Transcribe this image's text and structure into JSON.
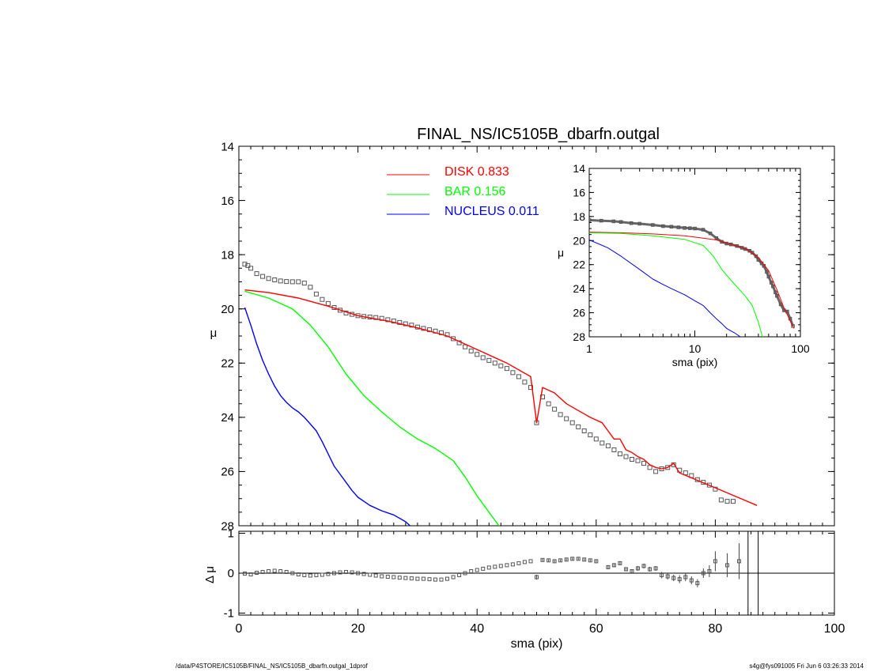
{
  "footer": {
    "left": "/data/P4STORE/IC5105B/FINAL_NS/IC5105B_dbarfn.outgal_1dprof",
    "right": "s4g@fys091005  Fri Jun  6 03:26:33 2014"
  },
  "chart_data": [
    {
      "type": "line",
      "panel": "main",
      "title": "FINAL_NS/IC5105B_dbarfn.outgal",
      "xlabel": "",
      "ylabel": "μ",
      "xlim": [
        0,
        100
      ],
      "ylim": [
        28,
        14
      ],
      "y_inverted": true,
      "yticks": [
        14,
        16,
        18,
        20,
        22,
        24,
        26,
        28
      ],
      "legend": {
        "placement": "top-center",
        "entries": [
          {
            "label": "DISK",
            "value": "0.833",
            "color": "#ff0000"
          },
          {
            "label": "BAR",
            "value": "0.156",
            "color": "#00ff00"
          },
          {
            "label": "NUCLEUS",
            "value": "0.011",
            "color": "#0000ff"
          }
        ]
      },
      "series": [
        {
          "name": "data",
          "style": "square-markers",
          "color": "#555555",
          "x": [
            1,
            1.5,
            2,
            3,
            4,
            5,
            6,
            7,
            8,
            9,
            10,
            11,
            12,
            13,
            14,
            15,
            16,
            17,
            18,
            19,
            20,
            21,
            22,
            23,
            24,
            25,
            26,
            27,
            28,
            29,
            30,
            31,
            32,
            33,
            34,
            35,
            36,
            37,
            38,
            39,
            40,
            41,
            42,
            43,
            44,
            45,
            46,
            47,
            48,
            49,
            50,
            51,
            52,
            53,
            54,
            55,
            56,
            57,
            58,
            59,
            60,
            61,
            62,
            63,
            64,
            65,
            66,
            67,
            68,
            69,
            70,
            71,
            72,
            73,
            74,
            75,
            76,
            77,
            78,
            79,
            80,
            81,
            82,
            83
          ],
          "y": [
            18.35,
            18.4,
            18.5,
            18.7,
            18.8,
            18.88,
            18.93,
            18.97,
            18.99,
            19.0,
            19.0,
            19.05,
            19.2,
            19.45,
            19.65,
            19.8,
            19.95,
            20.05,
            20.15,
            20.2,
            20.25,
            20.28,
            20.3,
            20.32,
            20.35,
            20.4,
            20.45,
            20.5,
            20.55,
            20.6,
            20.67,
            20.72,
            20.77,
            20.82,
            20.88,
            20.95,
            21.1,
            21.25,
            21.4,
            21.55,
            21.68,
            21.8,
            21.9,
            22.0,
            22.1,
            22.2,
            22.35,
            22.5,
            22.7,
            22.9,
            24.2,
            23.25,
            23.5,
            23.7,
            23.9,
            24.05,
            24.2,
            24.35,
            24.5,
            24.65,
            24.8,
            24.95,
            25.05,
            25.2,
            25.35,
            25.45,
            25.55,
            25.6,
            25.7,
            25.85,
            26.0,
            25.9,
            25.85,
            25.75,
            25.95,
            26.05,
            26.15,
            26.3,
            26.4,
            26.5,
            26.65,
            27.05,
            27.1,
            27.1
          ]
        },
        {
          "name": "DISK",
          "color": "#ff0000",
          "x": [
            1,
            5,
            10,
            15,
            20,
            25,
            30,
            35,
            40,
            45,
            49,
            50,
            51,
            53,
            55,
            57,
            59,
            61,
            63,
            64,
            65,
            66,
            67,
            68,
            69,
            70,
            71,
            72,
            73,
            74,
            80,
            87
          ],
          "y": [
            19.3,
            19.4,
            19.6,
            19.9,
            20.25,
            20.45,
            20.7,
            21.0,
            21.5,
            22.0,
            22.5,
            24.2,
            22.9,
            23.1,
            23.5,
            23.75,
            24.0,
            24.2,
            24.8,
            24.8,
            25.2,
            25.3,
            25.45,
            25.55,
            25.75,
            25.85,
            25.9,
            25.85,
            25.7,
            26.05,
            26.6,
            27.25
          ]
        },
        {
          "name": "BAR",
          "color": "#00ff00",
          "x": [
            1,
            5,
            9,
            12,
            15,
            18,
            21,
            24,
            27,
            30,
            33,
            36,
            38,
            40,
            42,
            44
          ],
          "y": [
            19.35,
            19.6,
            20.0,
            20.6,
            21.4,
            22.4,
            23.2,
            23.8,
            24.35,
            24.8,
            25.15,
            25.6,
            26.2,
            26.9,
            27.5,
            28.1
          ]
        },
        {
          "name": "NUCLEUS",
          "color": "#0000ff",
          "x": [
            1,
            2,
            3,
            4,
            5,
            6,
            7,
            8,
            9,
            10,
            11,
            12,
            13,
            14,
            15,
            16,
            17,
            18,
            19,
            20,
            22,
            24,
            26,
            28,
            29
          ],
          "y": [
            19.95,
            20.6,
            21.3,
            21.9,
            22.4,
            22.85,
            23.2,
            23.45,
            23.65,
            23.8,
            24.0,
            24.25,
            24.5,
            24.9,
            25.35,
            25.8,
            26.1,
            26.4,
            26.7,
            26.95,
            27.25,
            27.45,
            27.6,
            27.85,
            28.05
          ]
        }
      ]
    },
    {
      "type": "line",
      "panel": "inset",
      "xlabel": "sma (pix)",
      "ylabel": "μ",
      "xscale": "log",
      "xlim": [
        1,
        100
      ],
      "ylim": [
        28,
        14
      ],
      "y_inverted": true,
      "xticks": [
        1,
        10,
        100
      ],
      "yticks": [
        14,
        16,
        18,
        20,
        22,
        24,
        26,
        28
      ],
      "series": [
        {
          "name": "data",
          "style": "square-markers",
          "color": "#555555",
          "x": [
            1,
            1.3,
            1.7,
            2,
            2.5,
            3,
            4,
            5,
            6,
            7,
            8,
            9,
            10,
            12,
            14,
            16,
            18,
            20,
            22,
            25,
            28,
            30,
            33,
            35,
            38,
            40,
            43,
            45,
            48,
            50,
            53,
            55,
            58,
            60,
            65,
            70,
            75,
            80,
            85
          ],
          "y": [
            18.3,
            18.35,
            18.4,
            18.45,
            18.55,
            18.6,
            18.7,
            18.8,
            18.85,
            18.9,
            18.95,
            18.97,
            19.0,
            19.1,
            19.4,
            19.8,
            20.1,
            20.25,
            20.32,
            20.45,
            20.6,
            20.7,
            20.85,
            21.0,
            21.3,
            21.6,
            21.9,
            22.1,
            22.6,
            23.0,
            23.5,
            23.8,
            24.3,
            24.6,
            25.3,
            25.8,
            25.9,
            26.5,
            27.1
          ]
        },
        {
          "name": "DISK",
          "color": "#ff0000",
          "x": [
            1,
            2,
            4,
            8,
            12,
            16,
            20,
            25,
            30,
            40,
            50,
            60,
            70,
            87
          ],
          "y": [
            19.3,
            19.35,
            19.45,
            19.6,
            19.8,
            19.95,
            20.2,
            20.45,
            20.65,
            21.4,
            22.5,
            24.1,
            25.6,
            27.3
          ]
        },
        {
          "name": "BAR",
          "color": "#00ff00",
          "x": [
            1,
            2,
            4,
            8,
            12,
            15,
            18,
            22,
            26,
            30,
            35,
            40,
            44
          ],
          "y": [
            19.35,
            19.4,
            19.6,
            19.9,
            20.4,
            21.3,
            22.4,
            23.3,
            24.0,
            24.6,
            25.4,
            26.8,
            28.1
          ]
        },
        {
          "name": "NUCLEUS",
          "color": "#0000ff",
          "x": [
            1,
            1.5,
            2,
            3,
            4,
            5,
            6,
            8,
            10,
            12,
            14,
            16,
            18,
            20,
            24,
            28
          ],
          "y": [
            19.95,
            20.6,
            21.3,
            22.4,
            23.2,
            23.65,
            24.0,
            24.5,
            25.0,
            25.4,
            26.0,
            26.5,
            26.9,
            27.3,
            27.7,
            28.1
          ]
        }
      ]
    },
    {
      "type": "scatter",
      "panel": "residual",
      "xlabel": "sma (pix)",
      "ylabel": "Δ μ",
      "xlim": [
        0,
        100
      ],
      "ylim": [
        -1.05,
        1.05
      ],
      "xticks": [
        0,
        20,
        40,
        60,
        80,
        100
      ],
      "yticks": [
        -1,
        0,
        1
      ],
      "zero_line": true,
      "vertical_lines_x": [
        85.5,
        87.2
      ],
      "series": [
        {
          "name": "residual",
          "style": "square-markers-with-errorbars",
          "color": "#555555",
          "x": [
            1,
            2,
            3,
            4,
            5,
            6,
            7,
            8,
            9,
            10,
            11,
            12,
            13,
            14,
            15,
            16,
            17,
            18,
            19,
            20,
            21,
            22,
            23,
            24,
            25,
            26,
            27,
            28,
            29,
            30,
            31,
            32,
            33,
            34,
            35,
            36,
            37,
            38,
            39,
            40,
            41,
            42,
            43,
            44,
            45,
            46,
            47,
            48,
            49,
            50,
            51,
            52,
            53,
            54,
            55,
            56,
            57,
            58,
            59,
            60,
            62,
            63,
            64,
            65,
            66,
            67,
            68,
            69,
            70,
            71,
            72,
            73,
            74,
            75,
            76,
            77,
            78,
            79,
            80,
            82,
            84
          ],
          "y": [
            -0.01,
            -0.03,
            0.01,
            0.03,
            0.05,
            0.06,
            0.05,
            0.03,
            0.0,
            -0.03,
            -0.05,
            -0.06,
            -0.05,
            -0.04,
            -0.02,
            0.0,
            0.02,
            0.03,
            0.02,
            0.0,
            -0.02,
            -0.04,
            -0.06,
            -0.08,
            -0.09,
            -0.1,
            -0.11,
            -0.12,
            -0.13,
            -0.14,
            -0.14,
            -0.15,
            -0.16,
            -0.16,
            -0.14,
            -0.1,
            -0.05,
            0.0,
            0.05,
            0.08,
            0.11,
            0.14,
            0.16,
            0.18,
            0.2,
            0.22,
            0.25,
            0.28,
            0.3,
            -0.1,
            0.33,
            0.32,
            0.3,
            0.32,
            0.34,
            0.36,
            0.36,
            0.34,
            0.32,
            0.3,
            0.15,
            0.2,
            0.25,
            0.1,
            0.05,
            0.12,
            0.18,
            0.1,
            0.12,
            -0.05,
            -0.08,
            -0.12,
            -0.15,
            -0.1,
            -0.18,
            -0.25,
            0.0,
            0.05,
            0.3,
            0.2,
            0.3
          ],
          "err": [
            0.01,
            0.01,
            0.01,
            0.01,
            0.01,
            0.01,
            0.01,
            0.01,
            0.01,
            0.01,
            0.01,
            0.01,
            0.01,
            0.01,
            0.01,
            0.01,
            0.01,
            0.01,
            0.01,
            0.01,
            0.01,
            0.01,
            0.01,
            0.01,
            0.01,
            0.01,
            0.01,
            0.01,
            0.01,
            0.01,
            0.01,
            0.01,
            0.01,
            0.01,
            0.01,
            0.01,
            0.01,
            0.01,
            0.01,
            0.01,
            0.01,
            0.01,
            0.01,
            0.01,
            0.01,
            0.01,
            0.01,
            0.01,
            0.01,
            0.06,
            0.03,
            0.03,
            0.03,
            0.03,
            0.03,
            0.03,
            0.03,
            0.03,
            0.03,
            0.03,
            0.05,
            0.05,
            0.05,
            0.05,
            0.05,
            0.06,
            0.06,
            0.06,
            0.06,
            0.08,
            0.08,
            0.08,
            0.1,
            0.1,
            0.1,
            0.1,
            0.12,
            0.15,
            0.25,
            0.3,
            0.45
          ]
        }
      ]
    }
  ]
}
